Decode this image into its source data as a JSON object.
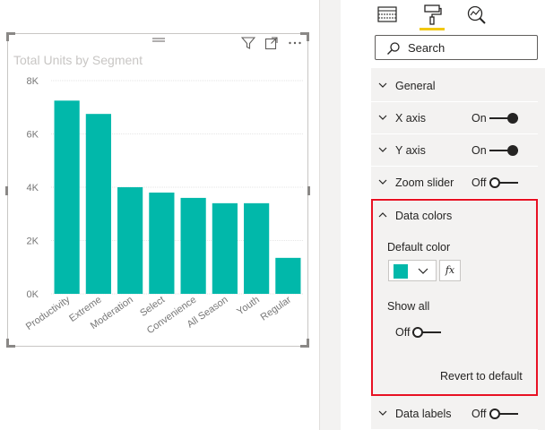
{
  "visual": {
    "title": "Total Units by Segment",
    "color": "#01B8AA"
  },
  "chart_data": {
    "type": "bar",
    "title": "Total Units by Segment",
    "categories": [
      "Productivity",
      "Extreme",
      "Moderation",
      "Select",
      "Convenience",
      "All Season",
      "Youth",
      "Regular"
    ],
    "values": [
      7250,
      6750,
      4000,
      3800,
      3600,
      3400,
      3400,
      1350
    ],
    "yticks": [
      "0K",
      "2K",
      "4K",
      "6K",
      "8K"
    ],
    "ylim": [
      0,
      8000
    ],
    "grid": true,
    "color": "#01B8AA"
  },
  "pane": {
    "search_placeholder": "Search",
    "tabs": [
      "fields-icon",
      "format-paint-icon",
      "analytics-icon"
    ],
    "sections": {
      "general": "General",
      "xaxis": "X axis",
      "xaxis_state": "On",
      "yaxis": "Y axis",
      "yaxis_state": "On",
      "zoom": "Zoom slider",
      "zoom_state": "Off",
      "datacolors": "Data colors",
      "datalabels": "Data labels",
      "datalabels_state": "Off"
    },
    "datacolors": {
      "default_color_label": "Default color",
      "fx": "fx",
      "show_all_label": "Show all",
      "show_all_state": "Off",
      "revert": "Revert to default"
    }
  }
}
